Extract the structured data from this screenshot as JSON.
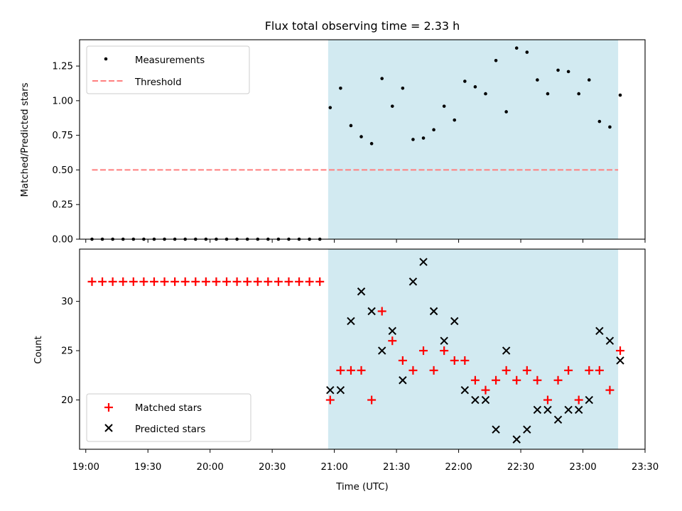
{
  "chart_data": [
    {
      "type": "scatter",
      "title": "Flux total observing time = 2.33 h",
      "xlabel": "",
      "ylabel": "Matched/Predicted stars",
      "ylim": [
        0,
        1.44
      ],
      "yticks": [
        "0.00",
        "0.25",
        "0.50",
        "0.75",
        "1.00",
        "1.25"
      ],
      "ytick_values": [
        0,
        0.25,
        0.5,
        0.75,
        1.0,
        1.25
      ],
      "shaded_region": {
        "start": "20:57",
        "end": "23:17",
        "color": "#add8e6"
      },
      "threshold": {
        "name": "Threshold",
        "value": 0.5,
        "from": "19:03",
        "to": "23:17",
        "color": "#ff7f7f"
      },
      "series": [
        {
          "name": "Measurements",
          "color": "#000000",
          "x": [
            "19:03",
            "19:08",
            "19:13",
            "19:18",
            "19:23",
            "19:28",
            "19:33",
            "19:38",
            "19:43",
            "19:48",
            "19:53",
            "19:58",
            "20:03",
            "20:08",
            "20:13",
            "20:18",
            "20:23",
            "20:28",
            "20:33",
            "20:38",
            "20:43",
            "20:48",
            "20:53",
            "20:58",
            "21:03",
            "21:08",
            "21:13",
            "21:18",
            "21:23",
            "21:28",
            "21:33",
            "21:38",
            "21:43",
            "21:48",
            "21:53",
            "21:58",
            "22:03",
            "22:08",
            "22:13",
            "22:18",
            "22:23",
            "22:28",
            "22:33",
            "22:38",
            "22:43",
            "22:48",
            "22:53",
            "22:58",
            "23:03",
            "23:08",
            "23:13",
            "23:18"
          ],
          "y": [
            0,
            0,
            0,
            0,
            0,
            0,
            0,
            0,
            0,
            0,
            0,
            0,
            0,
            0,
            0,
            0,
            0,
            0,
            0,
            0,
            0,
            0,
            0,
            0.95,
            1.09,
            0.82,
            0.74,
            0.69,
            1.16,
            0.96,
            1.09,
            0.72,
            0.73,
            0.79,
            0.96,
            0.86,
            1.14,
            1.1,
            1.05,
            1.29,
            0.92,
            1.38,
            1.35,
            1.15,
            1.05,
            1.22,
            1.21,
            1.05,
            1.15,
            0.85,
            0.81,
            1.04
          ]
        }
      ],
      "legend": "upper-left"
    },
    {
      "type": "scatter",
      "title": "",
      "xlabel": "Time (UTC)",
      "ylabel": "Count",
      "ylim": [
        15,
        35.3
      ],
      "yticks": [
        "20",
        "25",
        "30"
      ],
      "ytick_values": [
        20,
        25,
        30
      ],
      "xlim": [
        "18:57",
        "23:30"
      ],
      "xticks": [
        "19:00",
        "19:30",
        "20:00",
        "20:30",
        "21:00",
        "21:30",
        "22:00",
        "22:30",
        "23:00",
        "23:30"
      ],
      "shaded_region": {
        "start": "20:57",
        "end": "23:17",
        "color": "#add8e6"
      },
      "series": [
        {
          "name": "Matched stars",
          "marker": "+",
          "color": "#ff0000",
          "x": [
            "19:03",
            "19:08",
            "19:13",
            "19:18",
            "19:23",
            "19:28",
            "19:33",
            "19:38",
            "19:43",
            "19:48",
            "19:53",
            "19:58",
            "20:03",
            "20:08",
            "20:13",
            "20:18",
            "20:23",
            "20:28",
            "20:33",
            "20:38",
            "20:43",
            "20:48",
            "20:53",
            "20:58",
            "21:03",
            "21:08",
            "21:13",
            "21:18",
            "21:23",
            "21:28",
            "21:33",
            "21:38",
            "21:43",
            "21:48",
            "21:53",
            "21:58",
            "22:03",
            "22:08",
            "22:13",
            "22:18",
            "22:23",
            "22:28",
            "22:33",
            "22:38",
            "22:43",
            "22:48",
            "22:53",
            "22:58",
            "23:03",
            "23:08",
            "23:13",
            "23:18"
          ],
          "y": [
            32,
            32,
            32,
            32,
            32,
            32,
            32,
            32,
            32,
            32,
            32,
            32,
            32,
            32,
            32,
            32,
            32,
            32,
            32,
            32,
            32,
            32,
            32,
            20,
            23,
            23,
            23,
            20,
            29,
            26,
            24,
            23,
            25,
            23,
            25,
            24,
            24,
            22,
            21,
            22,
            23,
            22,
            23,
            22,
            20,
            22,
            23,
            20,
            23,
            23,
            21,
            25
          ]
        },
        {
          "name": "Predicted stars",
          "marker": "x",
          "color": "#000000",
          "x": [
            "20:58",
            "21:03",
            "21:08",
            "21:13",
            "21:18",
            "21:23",
            "21:28",
            "21:33",
            "21:38",
            "21:43",
            "21:48",
            "21:53",
            "21:58",
            "22:03",
            "22:08",
            "22:13",
            "22:18",
            "22:23",
            "22:28",
            "22:33",
            "22:38",
            "22:43",
            "22:48",
            "22:53",
            "22:58",
            "23:03",
            "23:08",
            "23:13",
            "23:18"
          ],
          "y": [
            21,
            21,
            28,
            31,
            29,
            25,
            27,
            22,
            32,
            34,
            29,
            26,
            28,
            21,
            20,
            20,
            17,
            25,
            16,
            17,
            19,
            19,
            18,
            19,
            19,
            20,
            27,
            26,
            24
          ]
        }
      ],
      "legend": "lower-left"
    }
  ]
}
